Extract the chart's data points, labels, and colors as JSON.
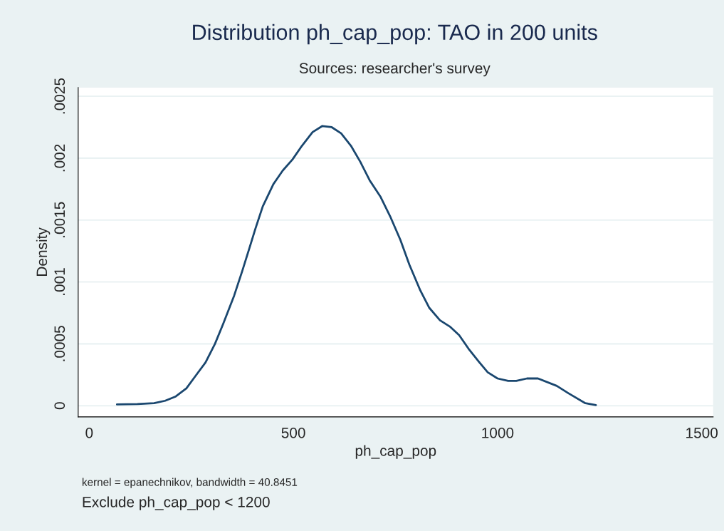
{
  "chart_data": {
    "type": "line",
    "title": "Distribution ph_cap_pop: TAO in 200 units",
    "subtitle": "Sources: researcher's survey",
    "xlabel": "ph_cap_pop",
    "ylabel": "Density",
    "annotations": [
      "kernel = epanechnikov, bandwidth = 40.8451",
      "Exclude ph_cap_pop < 1200"
    ],
    "x": [
      68,
      118,
      159,
      186,
      212,
      238,
      258,
      285,
      308,
      328,
      355,
      375,
      393,
      407,
      425,
      451,
      474,
      498,
      521,
      547,
      571,
      594,
      617,
      641,
      664,
      687,
      713,
      737,
      762,
      784,
      811,
      833,
      859,
      883,
      906,
      929,
      953,
      976,
      1000,
      1026,
      1046,
      1072,
      1099,
      1145,
      1174,
      1215,
      1241
    ],
    "series": [
      {
        "color": "#1a476f",
        "values": [
          1e-05,
          1.3e-05,
          2e-05,
          4e-05,
          7.5e-05,
          0.00014,
          0.00023,
          0.00035,
          0.0005,
          0.00066,
          0.00089,
          0.00109,
          0.00128,
          0.00143,
          0.00161,
          0.00179,
          0.0019,
          0.00199,
          0.0021,
          0.00221,
          0.00226,
          0.00225,
          0.0022,
          0.0021,
          0.00197,
          0.00182,
          0.00169,
          0.00153,
          0.00134,
          0.00114,
          0.00093,
          0.00079,
          0.00069,
          0.00064,
          0.00057,
          0.00046,
          0.00036,
          0.00027,
          0.00022,
          0.0002,
          0.0002,
          0.00022,
          0.00022,
          0.00016,
          0.0001,
          2e-05,
          5e-06
        ]
      }
    ],
    "xlim": [
      -27,
      1528
    ],
    "ylim": [
      -9e-05,
      0.00257
    ],
    "xticks": [
      0,
      500,
      1000,
      1500
    ],
    "yticks": [
      0,
      {
        "value": 0.0005,
        "label": ".0005"
      },
      {
        "value": 0.001,
        "label": ".001"
      },
      {
        "value": 0.0015,
        "label": ".0015"
      },
      {
        "value": 0.002,
        "label": ".002"
      },
      {
        "value": 0.0025,
        "label": ".0025"
      }
    ],
    "grid": "y",
    "legend": false,
    "marker": "none",
    "line_style": "solid"
  }
}
